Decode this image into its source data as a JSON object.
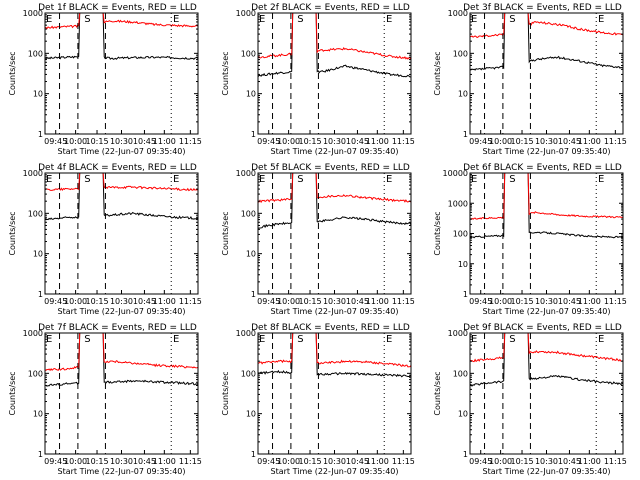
{
  "chart_data": [
    {
      "type": "line",
      "title": "Det 1f BLACK = Events, RED = LLD",
      "xlabel": "Start Time (22-Jun-07 09:35:40)",
      "ylabel": "Counts/sec",
      "yscale": "log",
      "ylim": [
        1,
        1000
      ],
      "x_ticks": [
        "09:45",
        "10:00",
        "10:15",
        "10:30",
        "10:45",
        "11:00",
        "11:15"
      ],
      "y_ticks": [
        "1",
        "10",
        "100",
        "1000"
      ],
      "markers": [
        "E",
        "S",
        "E"
      ],
      "series": [
        {
          "name": "Events",
          "color": "#000000",
          "levels": [
            75,
            80,
            85,
            75,
            78,
            80,
            78,
            75
          ]
        },
        {
          "name": "LLD",
          "color": "#ff0000",
          "levels": [
            430,
            460,
            480,
            640,
            600,
            520,
            490,
            470
          ]
        }
      ]
    },
    {
      "type": "line",
      "title": "Det 2f BLACK = Events, RED = LLD",
      "xlabel": "Start Time (22-Jun-07 09:35:40)",
      "ylabel": "Counts/sec",
      "yscale": "log",
      "ylim": [
        1,
        1000
      ],
      "x_ticks": [
        "09:45",
        "10:00",
        "10:15",
        "10:30",
        "10:45",
        "11:00",
        "11:15"
      ],
      "y_ticks": [
        "1",
        "10",
        "100",
        "1000"
      ],
      "markers": [
        "E",
        "S",
        "E"
      ],
      "series": [
        {
          "name": "Events",
          "color": "#000000",
          "levels": [
            28,
            33,
            36,
            35,
            48,
            38,
            30,
            27
          ]
        },
        {
          "name": "LLD",
          "color": "#ff0000",
          "levels": [
            80,
            90,
            100,
            120,
            130,
            105,
            85,
            75
          ]
        }
      ]
    },
    {
      "type": "line",
      "title": "Det 3f BLACK = Events, RED = LLD",
      "xlabel": "Start Time (22-Jun-07 09:35:40)",
      "ylabel": "Counts/sec",
      "yscale": "log",
      "ylim": [
        1,
        1000
      ],
      "x_ticks": [
        "09:45",
        "10:00",
        "10:15",
        "10:30",
        "10:45",
        "11:00",
        "11:15"
      ],
      "y_ticks": [
        "1",
        "10",
        "100",
        "1000"
      ],
      "markers": [
        "E",
        "S",
        "E"
      ],
      "series": [
        {
          "name": "Events",
          "color": "#000000",
          "levels": [
            38,
            43,
            48,
            70,
            80,
            65,
            50,
            45
          ]
        },
        {
          "name": "LLD",
          "color": "#ff0000",
          "levels": [
            250,
            280,
            300,
            600,
            520,
            400,
            330,
            290
          ]
        }
      ]
    },
    {
      "type": "line",
      "title": "Det 4f BLACK = Events, RED = LLD",
      "xlabel": "Start Time (22-Jun-07 09:35:40)",
      "ylabel": "Counts/sec",
      "yscale": "log",
      "ylim": [
        1,
        1000
      ],
      "x_ticks": [
        "09:45",
        "10:00",
        "10:15",
        "10:30",
        "10:45",
        "11:00",
        "11:15"
      ],
      "y_ticks": [
        "1",
        "10",
        "100",
        "1000"
      ],
      "markers": [
        "E",
        "S",
        "E"
      ],
      "series": [
        {
          "name": "Events",
          "color": "#000000",
          "levels": [
            70,
            78,
            85,
            90,
            100,
            88,
            80,
            75
          ]
        },
        {
          "name": "LLD",
          "color": "#ff0000",
          "levels": [
            380,
            400,
            420,
            440,
            450,
            420,
            400,
            380
          ]
        }
      ]
    },
    {
      "type": "line",
      "title": "Det 5f BLACK = Events, RED = LLD",
      "xlabel": "Start Time (22-Jun-07 09:35:40)",
      "ylabel": "Counts/sec",
      "yscale": "log",
      "ylim": [
        1,
        1000
      ],
      "x_ticks": [
        "09:45",
        "10:00",
        "10:15",
        "10:30",
        "10:45",
        "11:00",
        "11:15"
      ],
      "y_ticks": [
        "1",
        "10",
        "100",
        "1000"
      ],
      "markers": [
        "E",
        "S",
        "E"
      ],
      "series": [
        {
          "name": "Events",
          "color": "#000000",
          "levels": [
            45,
            55,
            60,
            65,
            80,
            70,
            60,
            55
          ]
        },
        {
          "name": "LLD",
          "color": "#ff0000",
          "levels": [
            200,
            215,
            230,
            260,
            280,
            240,
            215,
            200
          ]
        }
      ]
    },
    {
      "type": "line",
      "title": "Det 6f BLACK = Events, RED = LLD",
      "xlabel": "Start Time (22-Jun-07 09:35:40)",
      "ylabel": "Counts/sec",
      "yscale": "log",
      "ylim": [
        1,
        10000
      ],
      "x_ticks": [
        "09:45",
        "10:00",
        "10:15",
        "10:30",
        "10:45",
        "11:00",
        "11:15"
      ],
      "y_ticks": [
        "1",
        "10",
        "100",
        "1000",
        "10000"
      ],
      "markers": [
        "E",
        "S",
        "E"
      ],
      "series": [
        {
          "name": "Events",
          "color": "#000000",
          "levels": [
            75,
            82,
            90,
            110,
            100,
            85,
            78,
            75
          ]
        },
        {
          "name": "LLD",
          "color": "#ff0000",
          "levels": [
            300,
            330,
            350,
            500,
            420,
            380,
            360,
            350
          ]
        }
      ]
    },
    {
      "type": "line",
      "title": "Det 7f BLACK = Events, RED = LLD",
      "xlabel": "Start Time (22-Jun-07 09:35:40)",
      "ylabel": "Counts/sec",
      "yscale": "log",
      "ylim": [
        1,
        1000
      ],
      "x_ticks": [
        "09:45",
        "10:00",
        "10:15",
        "10:30",
        "10:45",
        "11:00",
        "11:15"
      ],
      "y_ticks": [
        "1",
        "10",
        "100",
        "1000"
      ],
      "markers": [
        "E",
        "S",
        "E"
      ],
      "series": [
        {
          "name": "Events",
          "color": "#000000",
          "levels": [
            50,
            55,
            60,
            60,
            65,
            62,
            58,
            55
          ]
        },
        {
          "name": "LLD",
          "color": "#ff0000",
          "levels": [
            120,
            130,
            150,
            200,
            180,
            160,
            150,
            140
          ]
        }
      ]
    },
    {
      "type": "line",
      "title": "Det 8f BLACK = Events, RED = LLD",
      "xlabel": "Start Time (22-Jun-07 09:35:40)",
      "ylabel": "Counts/sec",
      "yscale": "log",
      "ylim": [
        1,
        1000
      ],
      "x_ticks": [
        "09:45",
        "10:00",
        "10:15",
        "10:30",
        "10:45",
        "11:00",
        "11:15"
      ],
      "y_ticks": [
        "1",
        "10",
        "100",
        "1000"
      ],
      "markers": [
        "E",
        "S",
        "E"
      ],
      "series": [
        {
          "name": "Events",
          "color": "#000000",
          "levels": [
            100,
            110,
            100,
            95,
            100,
            95,
            90,
            85
          ]
        },
        {
          "name": "LLD",
          "color": "#ff0000",
          "levels": [
            180,
            200,
            190,
            180,
            200,
            190,
            170,
            150
          ]
        }
      ]
    },
    {
      "type": "line",
      "title": "Det 9f BLACK = Events, RED = LLD",
      "xlabel": "Start Time (22-Jun-07 09:35:40)",
      "ylabel": "Counts/sec",
      "yscale": "log",
      "ylim": [
        1,
        1000
      ],
      "x_ticks": [
        "09:45",
        "10:00",
        "10:15",
        "10:30",
        "10:45",
        "11:00",
        "11:15"
      ],
      "y_ticks": [
        "1",
        "10",
        "100",
        "1000"
      ],
      "markers": [
        "E",
        "S",
        "E"
      ],
      "series": [
        {
          "name": "Events",
          "color": "#000000",
          "levels": [
            50,
            60,
            65,
            75,
            85,
            70,
            60,
            55
          ]
        },
        {
          "name": "LLD",
          "color": "#ff0000",
          "levels": [
            200,
            230,
            260,
            350,
            330,
            280,
            240,
            210
          ]
        }
      ]
    }
  ]
}
